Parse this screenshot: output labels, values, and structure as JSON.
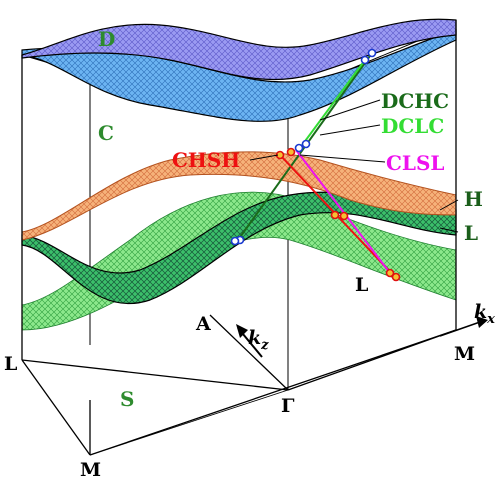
{
  "labels": {
    "D": "D",
    "C": "C",
    "H": "H",
    "L_band": "L",
    "S": "S",
    "DCHC": "DCHC",
    "DCLC": "DCLC",
    "CHSH": "CHSH",
    "CLSL": "CLSL",
    "kpoint_L_mid": "L",
    "kpoint_A": "A",
    "kpoint_kz": "k",
    "kpoint_kz_sub": "z",
    "kpoint_kx": "k",
    "kpoint_kx_sub": "x",
    "kpoint_M_right": "M",
    "kpoint_L_left": "L",
    "kpoint_Gamma": "Γ",
    "kpoint_M_bottom": "M"
  },
  "colors": {
    "D": "#2e8b2e",
    "C": "#2e8b2e",
    "H": "#1a5e1a",
    "L_band": "#1a5e1a",
    "S": "#2e8b2e",
    "DCHC": "#1a6b1a",
    "DCLC": "#33dd33",
    "CHSH": "#ee1111",
    "CLSL": "#ee11ee",
    "kpoint": "#000000",
    "band_D": "#8e8cf0",
    "band_C": "#5aa4ee",
    "band_H": "#f4a86a",
    "band_L": "#66dd66",
    "band_S": "#7ae07a"
  }
}
